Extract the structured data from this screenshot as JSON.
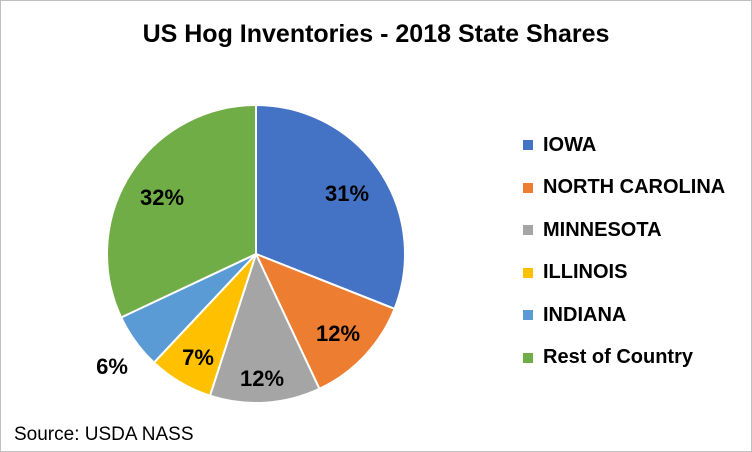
{
  "chart_data": {
    "type": "pie",
    "title": "US Hog Inventories - 2018 State Shares",
    "categories": [
      "IOWA",
      "NORTH CAROLINA",
      "MINNESOTA",
      "ILLINOIS",
      "INDIANA",
      "Rest of Country"
    ],
    "values": [
      31,
      12,
      12,
      7,
      6,
      32
    ],
    "data_labels": [
      "31%",
      "12%",
      "12%",
      "7%",
      "6%",
      "32%"
    ],
    "colors": [
      "#4472C4",
      "#ED7D31",
      "#A5A5A5",
      "#FFC000",
      "#5B9BD5",
      "#70AD47"
    ],
    "legend_position": "right"
  },
  "source": "Source: USDA NASS"
}
